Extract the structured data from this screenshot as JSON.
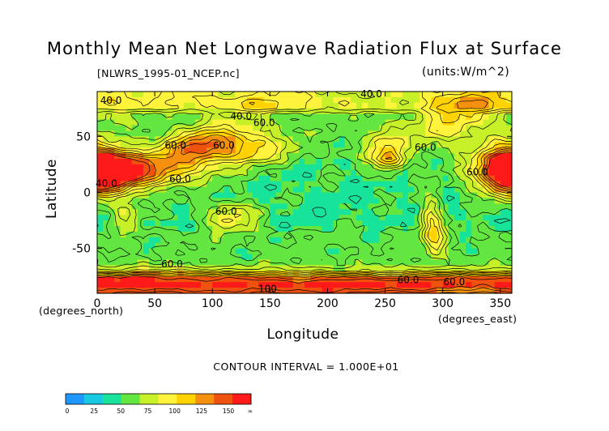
{
  "chart_data": {
    "type": "heatmap",
    "title": "Monthly Mean Net Longwave Radiation Flux at Surface",
    "file_label": "[NLWRS_1995-01_NCEP.nc]",
    "units_label": "(units:W/m^2)",
    "xlabel": "Longitude",
    "ylabel": "Latitude",
    "x_units_note": "(degrees_east)",
    "y_units_note": "(degrees_north)",
    "xlim": [
      0,
      360
    ],
    "ylim": [
      -90,
      90
    ],
    "x_ticks": [
      0,
      50,
      100,
      150,
      200,
      250,
      300,
      350
    ],
    "y_ticks": [
      50,
      0,
      -50
    ],
    "contour_interval_text": "CONTOUR INTERVAL = 1.000E+01",
    "contour_labels": [
      {
        "text": "40.0",
        "lon": 12,
        "lat": 82
      },
      {
        "text": "40.0",
        "lon": 125,
        "lat": 68
      },
      {
        "text": "60.0",
        "lon": 145,
        "lat": 62
      },
      {
        "text": "60.0",
        "lon": 68,
        "lat": 42
      },
      {
        "text": "60.0",
        "lon": 110,
        "lat": 42
      },
      {
        "text": "60.0",
        "lon": 72,
        "lat": 12
      },
      {
        "text": "40.0",
        "lon": 8,
        "lat": 8
      },
      {
        "text": "60.0",
        "lon": 285,
        "lat": 40
      },
      {
        "text": "60.0",
        "lon": 330,
        "lat": 18
      },
      {
        "text": "40.0",
        "lon": 238,
        "lat": 88
      },
      {
        "text": "60.0",
        "lon": 112,
        "lat": -17
      },
      {
        "text": "60.0",
        "lon": 65,
        "lat": -64
      },
      {
        "text": "60.0",
        "lon": 270,
        "lat": -78
      },
      {
        "text": "60.0",
        "lon": 310,
        "lat": -80
      },
      {
        "text": "100",
        "lon": 148,
        "lat": -86
      }
    ],
    "colorbar": {
      "levels": [
        "0",
        "25",
        "50",
        "75",
        "100",
        "125",
        "150",
        "∞"
      ],
      "colors": [
        "#1e96ff",
        "#17c8e0",
        "#17e39b",
        "#63e640",
        "#c8f028",
        "#fff33b",
        "#ffd200",
        "#f58f0e",
        "#ef520f",
        "#ff1a1a"
      ]
    },
    "field_description": "Background field ~40-50 W/m2 (green/cyan); high values (orange/red, >100) over deserts and high-latitude bands; local maxima over North Africa, Tibet, Arabian Peninsula, central Asia, western US, Andes and Antarctica margins."
  }
}
